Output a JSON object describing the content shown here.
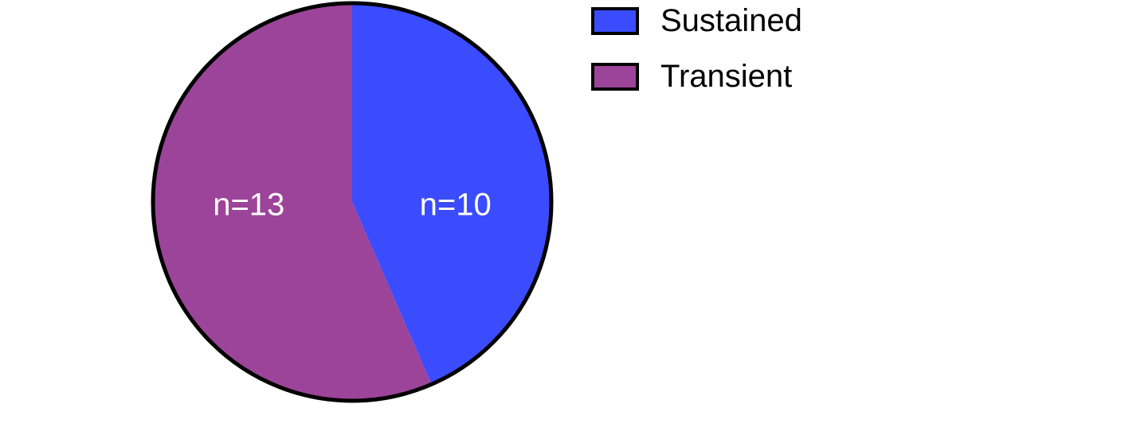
{
  "chart_data": {
    "type": "pie",
    "slices": [
      {
        "name": "Sustained",
        "value": 10,
        "label": "n=10",
        "color": "#3b4cff"
      },
      {
        "name": "Transient",
        "value": 13,
        "label": "n=13",
        "color": "#9c4499"
      }
    ],
    "start": "top",
    "direction": "clockwise",
    "legend_position": "top-right",
    "outline_color": "#000000"
  }
}
